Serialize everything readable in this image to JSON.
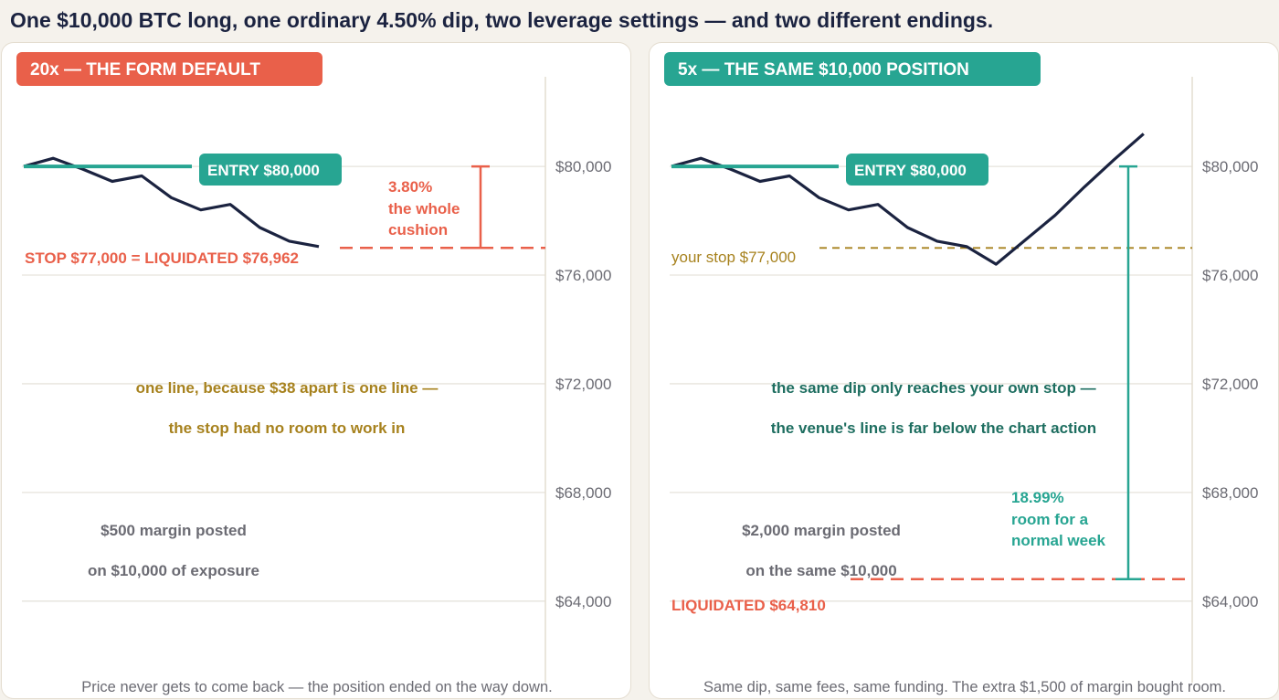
{
  "title": "One $10,000 BTC long, one ordinary 4.50% dip, two leverage settings — and two different endings.",
  "colors": {
    "accent_red": "#e9604a",
    "accent_teal": "#27a592",
    "price_line": "#1b2340",
    "gold": "#a7821e",
    "dark_teal": "#1e6e60",
    "gray_text": "#6b6b73",
    "grid": "#e6e3dc"
  },
  "chart_data": [
    {
      "type": "line",
      "tag": "20x  —  THE FORM DEFAULT",
      "y_ticks": [
        "$80,000",
        "$76,000",
        "$72,000",
        "$68,000",
        "$64,000"
      ],
      "y_tick_values": [
        80000,
        76000,
        72000,
        68000,
        64000
      ],
      "ylim": [
        61000,
        83300
      ],
      "series": [
        {
          "values": [
            80000,
            80300,
            79900,
            79450,
            79650,
            78850,
            78400,
            78600,
            77750,
            77250,
            77050
          ]
        }
      ],
      "entry_label": "ENTRY  $80,000",
      "entry_price": 80000,
      "stop_label": "STOP $77,000  =  LIQUIDATED $76,962",
      "stop_price": 77000,
      "cushion_label": [
        "3.80%",
        "the whole",
        "cushion"
      ],
      "annotation": [
        "one line, because $38 apart is one line —",
        "the stop had no room to work in"
      ],
      "margin_note": [
        "$500 margin posted",
        "on $10,000 of exposure"
      ],
      "footer": "Price never gets to come back — the position ended on the way down."
    },
    {
      "type": "line",
      "tag": "5x  —  THE SAME $10,000 POSITION",
      "y_ticks": [
        "$80,000",
        "$76,000",
        "$72,000",
        "$68,000",
        "$64,000"
      ],
      "y_tick_values": [
        80000,
        76000,
        72000,
        68000,
        64000
      ],
      "ylim": [
        61000,
        83300
      ],
      "series": [
        {
          "values": [
            80000,
            80300,
            79900,
            79450,
            79650,
            78850,
            78400,
            78600,
            77750,
            77250,
            77050,
            76400,
            77300,
            78200,
            79250,
            80250,
            81200
          ]
        }
      ],
      "entry_label": "ENTRY  $80,000",
      "entry_price": 80000,
      "stop_label": "your stop  $77,000",
      "stop_price": 77000,
      "liq_label": "LIQUIDATED  $64,810",
      "liq_price": 64810,
      "room_label": [
        "18.99%",
        "room for a",
        "normal week"
      ],
      "annotation": [
        "the same dip only reaches your own stop —",
        "the venue's line is far below the chart action"
      ],
      "margin_note": [
        "$2,000 margin posted",
        "on the same $10,000"
      ],
      "footer": "Same dip, same fees, same funding. The extra $1,500 of margin bought room."
    }
  ]
}
